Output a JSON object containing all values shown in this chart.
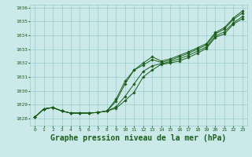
{
  "background_color": "#cce9e9",
  "grid_color": "#99cccc",
  "line_color": "#1a5e1a",
  "marker_color": "#1a5e1a",
  "xlabel": "Graphe pression niveau de la mer (hPa)",
  "xlabel_fontsize": 7,
  "xlim": [
    -0.5,
    23.5
  ],
  "ylim": [
    1027.5,
    1036.2
  ],
  "yticks": [
    1028,
    1029,
    1030,
    1031,
    1032,
    1033,
    1034,
    1035,
    1036
  ],
  "xticks": [
    0,
    1,
    2,
    3,
    4,
    5,
    6,
    7,
    8,
    9,
    10,
    11,
    12,
    13,
    14,
    15,
    16,
    17,
    18,
    19,
    20,
    21,
    22,
    23
  ],
  "series": [
    [
      1028.1,
      1028.7,
      1028.8,
      1028.55,
      1028.4,
      1028.4,
      1028.4,
      1028.45,
      1028.55,
      1028.75,
      1029.3,
      1029.9,
      1031.0,
      1031.5,
      1031.9,
      1032.0,
      1032.15,
      1032.4,
      1032.7,
      1033.05,
      1033.85,
      1034.1,
      1034.8,
      1035.2
    ],
    [
      1028.1,
      1028.7,
      1028.8,
      1028.55,
      1028.4,
      1028.4,
      1028.4,
      1028.45,
      1028.55,
      1028.85,
      1029.6,
      1030.5,
      1031.4,
      1031.8,
      1031.95,
      1032.1,
      1032.3,
      1032.55,
      1032.85,
      1033.15,
      1033.95,
      1034.25,
      1034.9,
      1035.35
    ],
    [
      1028.1,
      1028.7,
      1028.8,
      1028.55,
      1028.4,
      1028.4,
      1028.4,
      1028.45,
      1028.55,
      1029.25,
      1030.5,
      1031.5,
      1031.85,
      1032.25,
      1032.05,
      1032.2,
      1032.45,
      1032.7,
      1033.0,
      1033.3,
      1034.1,
      1034.45,
      1035.15,
      1035.6
    ],
    [
      1028.1,
      1028.7,
      1028.8,
      1028.55,
      1028.4,
      1028.4,
      1028.4,
      1028.45,
      1028.55,
      1029.4,
      1030.7,
      1031.5,
      1032.0,
      1032.45,
      1032.15,
      1032.3,
      1032.55,
      1032.8,
      1033.1,
      1033.4,
      1034.2,
      1034.55,
      1035.25,
      1035.75
    ]
  ]
}
